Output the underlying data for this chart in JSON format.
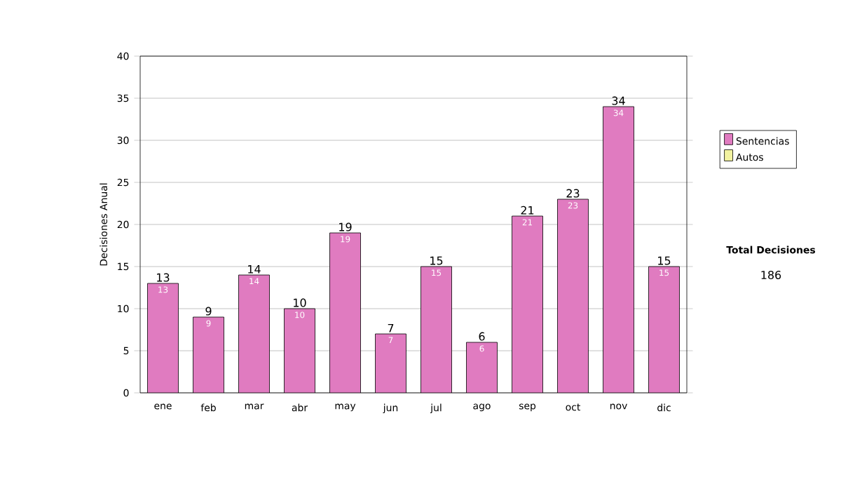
{
  "chart_data": {
    "type": "bar",
    "stacked": true,
    "categories": [
      "ene",
      "feb",
      "mar",
      "abr",
      "may",
      "jun",
      "jul",
      "ago",
      "sep",
      "oct",
      "nov",
      "dic"
    ],
    "series": [
      {
        "name": "Sentencias",
        "color": "#e07bc0",
        "values": [
          13,
          9,
          14,
          10,
          19,
          7,
          15,
          6,
          21,
          23,
          34,
          15
        ],
        "value_labels": [
          "13",
          "9",
          "14",
          "10",
          "19",
          "7",
          "15",
          "6",
          "21",
          "23",
          "34",
          "15"
        ]
      },
      {
        "name": "Autos",
        "color": "#f2f2a0",
        "values": [
          0,
          0,
          0,
          0,
          0,
          0,
          0,
          0,
          0,
          0,
          0,
          0
        ]
      }
    ],
    "totals": [
      "13",
      "9",
      "14",
      "10",
      "19",
      "7",
      "15",
      "6",
      "21",
      "23",
      "34",
      "15"
    ],
    "ylabel": "Decisiones Anual",
    "ylim": [
      0,
      40
    ],
    "yticks": [
      0,
      5,
      10,
      15,
      20,
      25,
      30,
      35,
      40
    ],
    "grid": "y",
    "legend": "right",
    "annotations": [
      "Total Decisiones",
      "186"
    ]
  }
}
